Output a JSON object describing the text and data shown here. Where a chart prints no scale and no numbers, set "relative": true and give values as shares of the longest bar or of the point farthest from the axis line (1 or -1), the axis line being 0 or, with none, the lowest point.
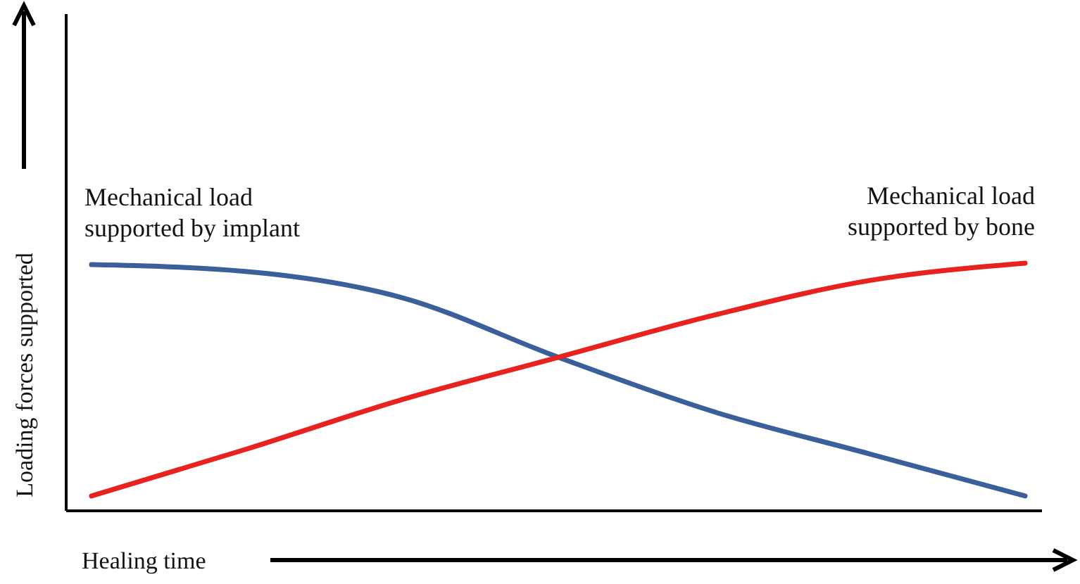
{
  "chart_data": {
    "type": "line",
    "relative": true,
    "xlabel": "Healing time",
    "ylabel": "Loading forces supported",
    "categories": [
      null,
      null,
      null,
      null,
      null,
      null,
      null
    ],
    "series": [
      {
        "name": "Mechanical load supported by implant",
        "color": "#3b5f9a",
        "values": [
          0.994,
          0.966,
          0.86,
          0.62,
          0.4,
          0.23,
          0.06
        ]
      },
      {
        "name": "Mechanical load supported by bone",
        "color": "#e8221f",
        "values": [
          0.06,
          0.25,
          0.45,
          0.62,
          0.79,
          0.93,
          1.0
        ]
      }
    ]
  }
}
